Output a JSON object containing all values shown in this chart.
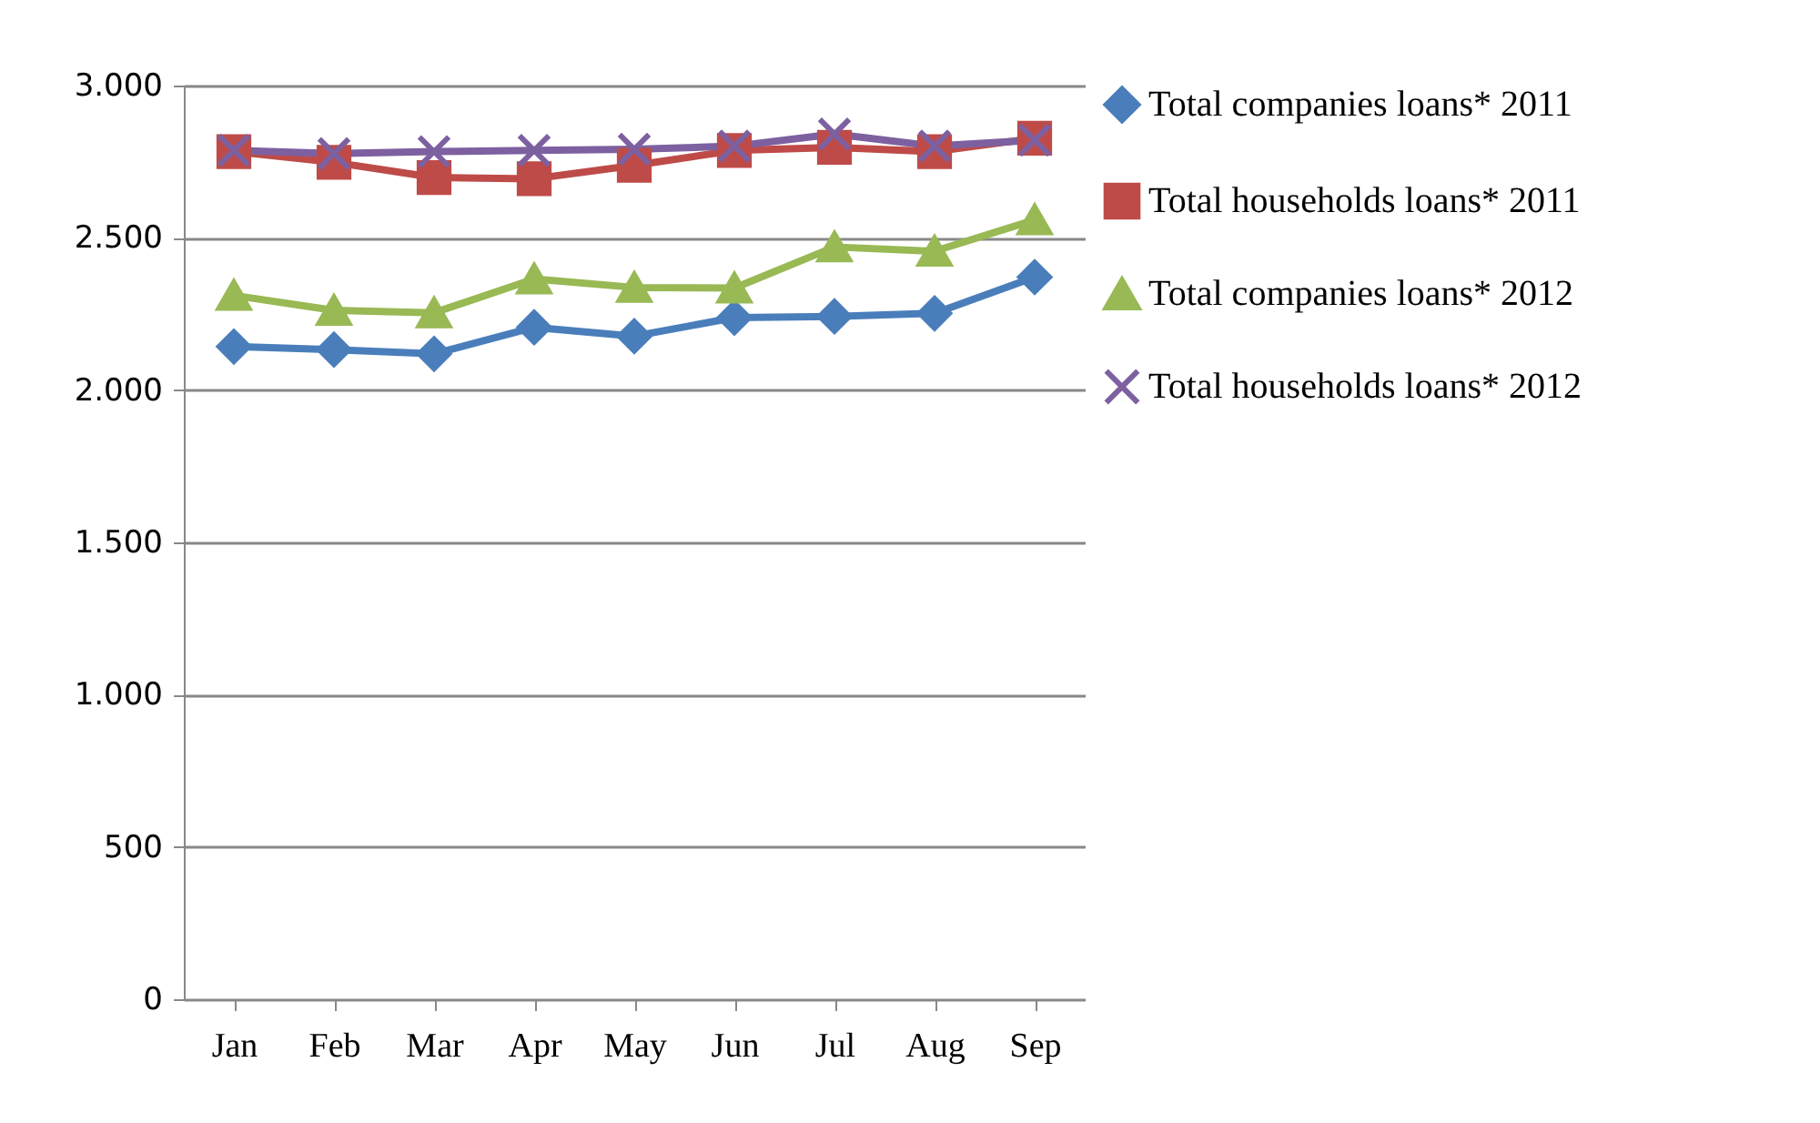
{
  "chart_data": {
    "type": "line",
    "categories": [
      "Jan",
      "Feb",
      "Mar",
      "Apr",
      "May",
      "Jun",
      "Jul",
      "Aug",
      "Sep"
    ],
    "series": [
      {
        "name": "Total companies loans* 2011",
        "color": "#4a7ebb",
        "marker": "diamond",
        "values": [
          2143,
          2133,
          2119,
          2206,
          2177,
          2238,
          2242,
          2252,
          2371
        ]
      },
      {
        "name": "Total households loans* 2011",
        "color": "#be4b48",
        "marker": "square",
        "values": [
          2783,
          2748,
          2698,
          2694,
          2738,
          2787,
          2797,
          2783,
          2827
        ]
      },
      {
        "name": "Total companies loans* 2012",
        "color": "#98b954",
        "marker": "triangle",
        "values": [
          2311,
          2262,
          2254,
          2365,
          2337,
          2335,
          2470,
          2456,
          2559
        ]
      },
      {
        "name": "Total households loans* 2012",
        "color": "#7d60a0",
        "marker": "cross",
        "values": [
          2787,
          2777,
          2783,
          2787,
          2791,
          2801,
          2841,
          2801,
          2821
        ]
      }
    ],
    "ylim": [
      0,
      3000
    ],
    "yticks": [
      0,
      {
        "value": 500,
        "label": "500"
      },
      {
        "value": 1000,
        "label": "1.000"
      },
      {
        "value": 1500,
        "label": "1.500"
      },
      {
        "value": 2000,
        "label": "2.000"
      },
      {
        "value": 2500,
        "label": "2.500"
      },
      {
        "value": 3000,
        "label": "3.000"
      }
    ],
    "grid": "y",
    "legend": "right"
  }
}
